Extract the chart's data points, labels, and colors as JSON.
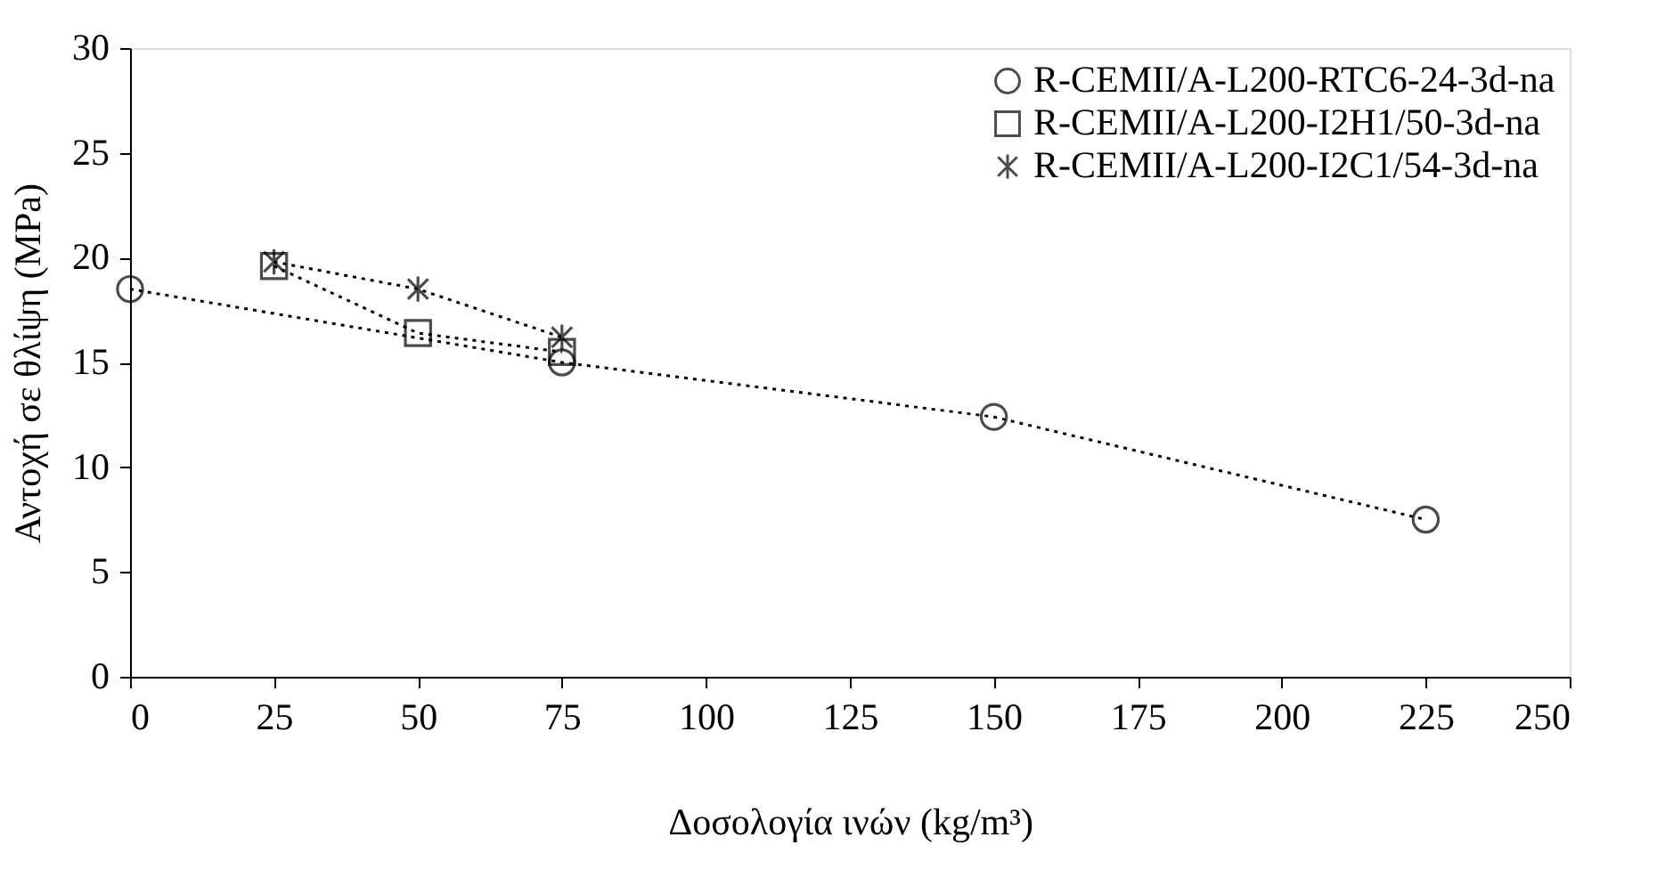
{
  "chart_data": {
    "type": "line",
    "xlabel": "Δοσολογία ινών (kg/m³)",
    "ylabel": "Αντοχή σε θλίψη (MPa)",
    "xlim": [
      0,
      250
    ],
    "xticks": [
      0,
      25,
      50,
      75,
      100,
      125,
      150,
      175,
      200,
      225,
      250
    ],
    "ylim": [
      0,
      30
    ],
    "yticks": [
      0,
      5,
      10,
      15,
      20,
      25,
      30
    ],
    "grid": false,
    "legend": "top right",
    "line_style": "dotted",
    "series": [
      {
        "name": "R-CEMII/A-L200-RTC6-24-3d-na",
        "color": "#000000",
        "marker": "circle",
        "x": [
          0,
          75,
          150,
          225
        ],
        "values": [
          18.5,
          15.0,
          12.4,
          7.5
        ]
      },
      {
        "name": "R-CEMII/A-L200-I2H1/50-3d-na",
        "color": "#000000",
        "marker": "square",
        "x": [
          25,
          50,
          75
        ],
        "values": [
          19.6,
          16.4,
          15.5
        ]
      },
      {
        "name": "R-CEMII/A-L200-I2C1/54-3d-na",
        "color": "#000000",
        "marker": "cross",
        "x": [
          25,
          50,
          75
        ],
        "values": [
          19.8,
          18.5,
          16.2
        ]
      }
    ]
  }
}
